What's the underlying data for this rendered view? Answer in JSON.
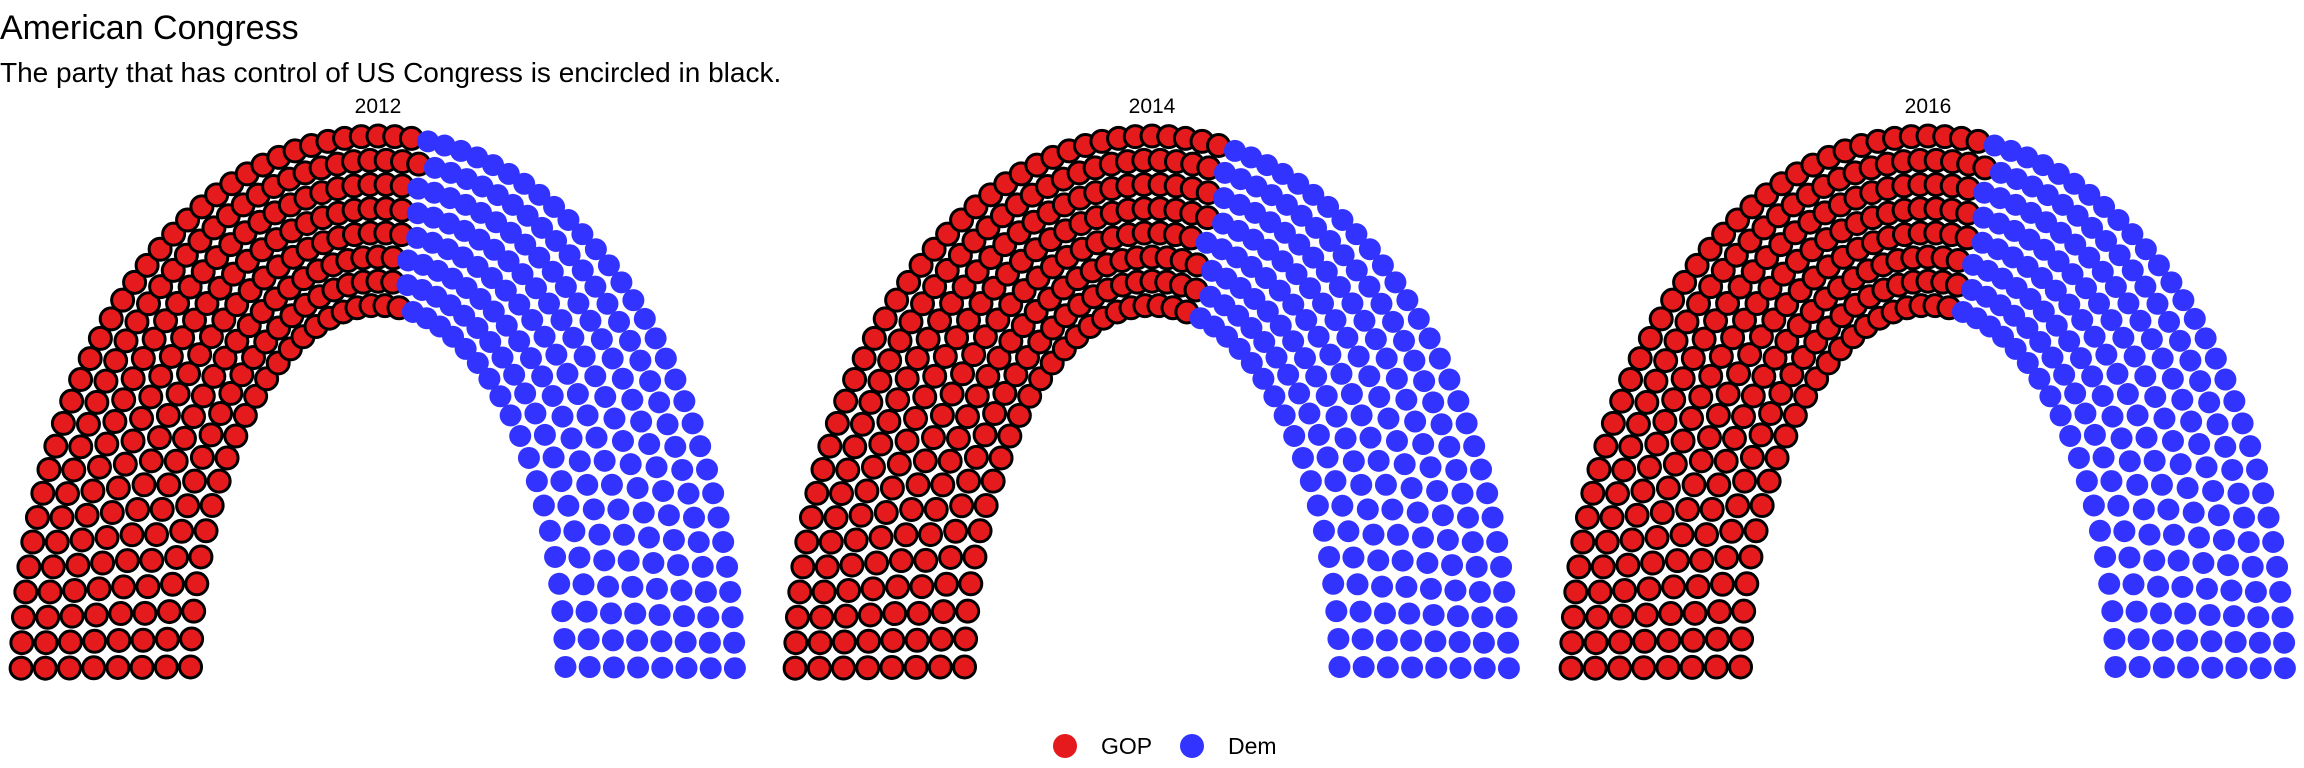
{
  "title": "American Congress",
  "subtitle": "The party that has control of US Congress is encircled in black.",
  "colors": {
    "GOP": "#E41A1C",
    "Dem": "#3333FF",
    "outline": "#000000"
  },
  "chart_data": {
    "type": "parliament",
    "facets": [
      {
        "label": "2012",
        "seats": {
          "GOP": 234,
          "Dem": 201
        },
        "control": "GOP"
      },
      {
        "label": "2014",
        "seats": {
          "GOP": 247,
          "Dem": 188
        },
        "control": "GOP"
      },
      {
        "label": "2016",
        "seats": {
          "GOP": 241,
          "Dem": 194
        },
        "control": "GOP"
      }
    ],
    "rows": 8,
    "total_seats": 435,
    "legend": [
      {
        "name": "GOP",
        "color": "#E41A1C"
      },
      {
        "name": "Dem",
        "color": "#3333FF"
      }
    ],
    "legend_position": "bottom"
  }
}
